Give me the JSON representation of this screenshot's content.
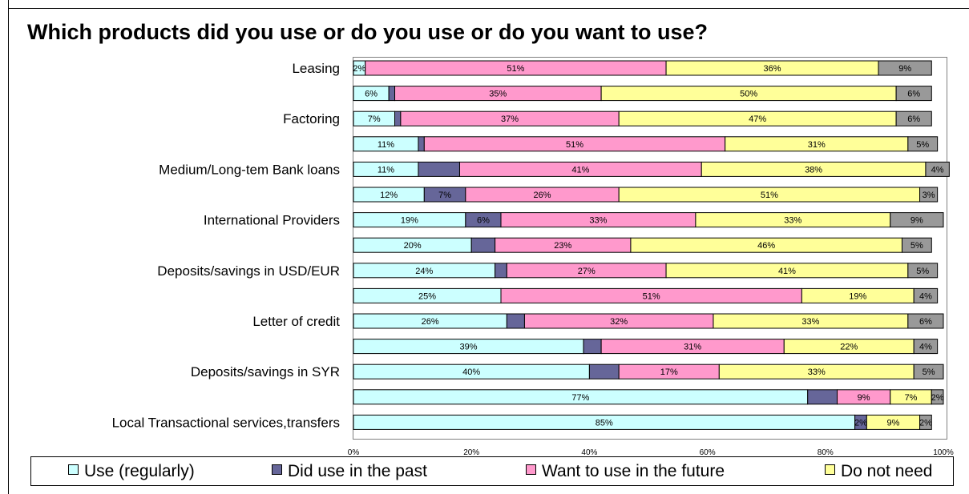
{
  "chart_data": {
    "type": "bar",
    "orientation": "horizontal",
    "stacked": true,
    "title": "Which products did you use or do you use or do you want to use?",
    "categories": [
      "Leasing",
      "",
      "Factoring",
      "",
      "Medium/Long-tem Bank loans",
      "",
      "International Providers",
      "",
      "Deposits/savings in USD/EUR",
      "",
      "Letter of credit",
      "",
      "Deposits/savings in SYR",
      "",
      "Local Transactional services,transfers"
    ],
    "series": [
      {
        "name": "Use (regularly)",
        "color": "#ccffff",
        "values": [
          2,
          6,
          7,
          11,
          11,
          12,
          19,
          20,
          24,
          25,
          26,
          39,
          40,
          77,
          85
        ]
      },
      {
        "name": "Did use in the past",
        "color": "#666699",
        "values": [
          0,
          1,
          1,
          1,
          7,
          7,
          6,
          4,
          2,
          0,
          3,
          3,
          5,
          5,
          2
        ]
      },
      {
        "name": "Want to use in the future",
        "color": "#ff99cc",
        "values": [
          51,
          35,
          37,
          51,
          41,
          26,
          33,
          23,
          27,
          51,
          32,
          31,
          17,
          9,
          0
        ]
      },
      {
        "name": "Do not need",
        "color": "#ffff99",
        "values": [
          36,
          50,
          47,
          31,
          38,
          51,
          33,
          46,
          41,
          19,
          33,
          22,
          33,
          7,
          9
        ]
      },
      {
        "name": "",
        "color": "#999999",
        "values": [
          9,
          6,
          6,
          5,
          4,
          3,
          9,
          5,
          5,
          4,
          6,
          4,
          5,
          2,
          2
        ]
      }
    ],
    "data_labels": [
      [
        "2%",
        "",
        "51%",
        "36%",
        "9%"
      ],
      [
        "6%",
        "",
        "35%",
        "50%",
        "6%"
      ],
      [
        "7%",
        "",
        "37%",
        "47%",
        "6%"
      ],
      [
        "11%",
        "",
        "51%",
        "31%",
        "5%"
      ],
      [
        "11%",
        "",
        "41%",
        "38%",
        "4%"
      ],
      [
        "12%",
        "7%",
        "26%",
        "51%",
        "3%"
      ],
      [
        "19%",
        "6%",
        "33%",
        "33%",
        "9%"
      ],
      [
        "20%",
        "",
        "23%",
        "46%",
        "5%"
      ],
      [
        "24%",
        "",
        "27%",
        "41%",
        "5%"
      ],
      [
        "25%",
        "",
        "51%",
        "19%",
        "4%"
      ],
      [
        "26%",
        "",
        "32%",
        "33%",
        "6%"
      ],
      [
        "39%",
        "",
        "31%",
        "22%",
        "4%"
      ],
      [
        "40%",
        "",
        "17%",
        "33%",
        "5%"
      ],
      [
        "77%",
        "",
        "9%",
        "7%",
        "2%"
      ],
      [
        "85%",
        "2%",
        "",
        "9%",
        "2%"
      ]
    ],
    "x_ticks": [
      "0%",
      "20%",
      "40%",
      "60%",
      "80%",
      "100%"
    ],
    "xlim": [
      0,
      100
    ],
    "grid": false,
    "legend_position": "bottom",
    "legend": [
      "Use (regularly)",
      "Did use in the past",
      "Want to use in the future",
      "Do not need"
    ]
  }
}
